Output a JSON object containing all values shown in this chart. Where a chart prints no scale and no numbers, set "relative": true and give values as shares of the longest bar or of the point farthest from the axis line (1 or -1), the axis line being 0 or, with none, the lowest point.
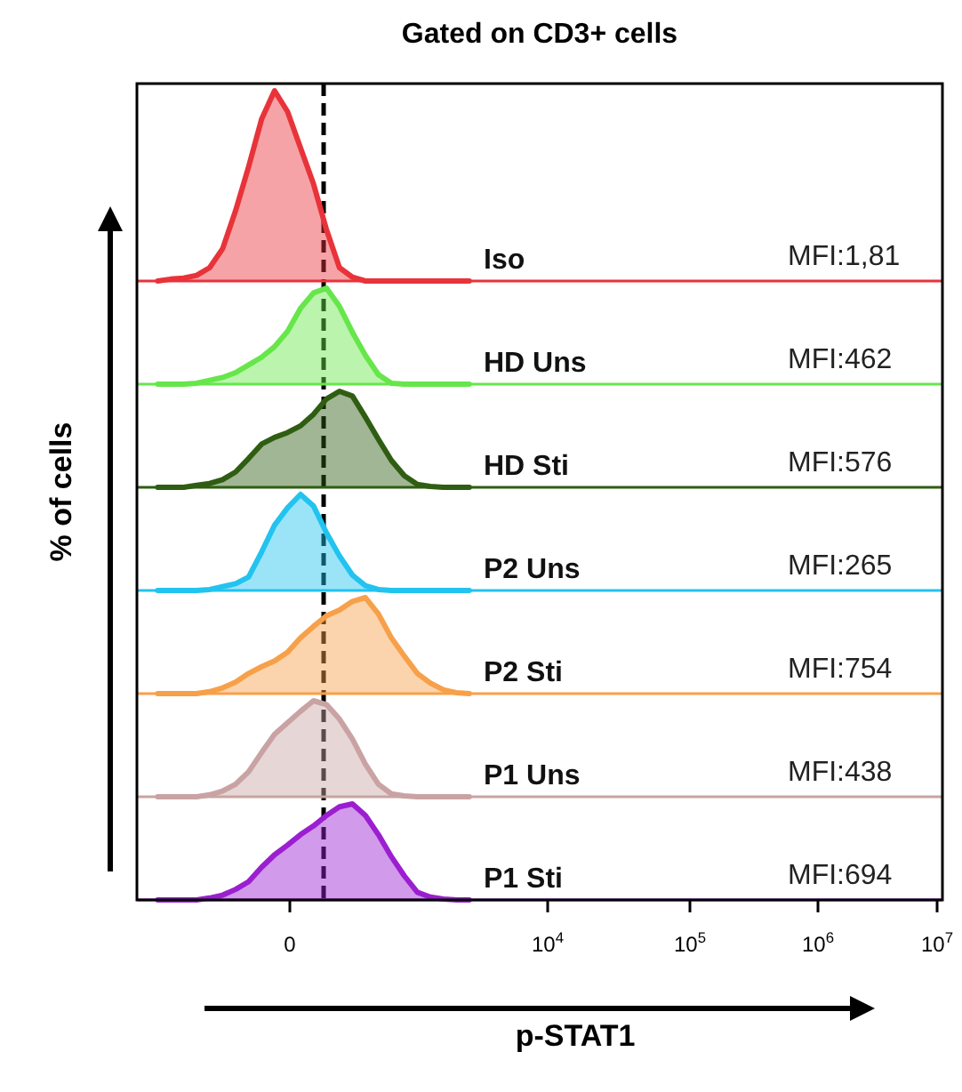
{
  "chart_data": [
    {
      "type": "area",
      "title": "Gated on CD3+ cells",
      "ylabel": "% of cells",
      "relative": true,
      "legend": false,
      "line_style": "solid",
      "annotations": [
        "MFI:1,81"
      ],
      "categories": [
        null,
        null,
        null,
        null,
        null,
        null,
        null,
        null,
        null,
        null,
        null,
        null,
        null,
        null,
        null,
        null,
        null,
        null,
        null,
        null,
        null,
        null,
        null,
        null,
        null
      ],
      "series": [
        {
          "name": "Iso",
          "color": "#e8333a",
          "values": [
            0,
            0.01,
            0.015,
            0.03,
            0.07,
            0.17,
            0.37,
            0.6,
            0.85,
            1,
            0.89,
            0.7,
            0.51,
            0.27,
            0.07,
            0.02,
            0,
            0,
            0,
            0,
            0,
            0,
            0,
            0,
            0
          ]
        }
      ]
    },
    {
      "type": "area",
      "relative": true,
      "legend": false,
      "line_style": "solid",
      "annotations": [
        "MFI:462"
      ],
      "categories": [
        null,
        null,
        null,
        null,
        null,
        null,
        null,
        null,
        null,
        null,
        null,
        null,
        null,
        null,
        null,
        null,
        null,
        null,
        null,
        null,
        null,
        null,
        null,
        null,
        null
      ],
      "series": [
        {
          "name": "HD Uns",
          "color": "#66e64a",
          "values": [
            0,
            0,
            0,
            0.01,
            0.04,
            0.07,
            0.12,
            0.2,
            0.28,
            0.39,
            0.55,
            0.79,
            0.95,
            1,
            0.81,
            0.54,
            0.3,
            0.1,
            0.01,
            0,
            0,
            0,
            0,
            0,
            0
          ]
        }
      ]
    },
    {
      "type": "area",
      "relative": true,
      "legend": false,
      "line_style": "solid",
      "annotations": [
        "MFI:576"
      ],
      "categories": [
        null,
        null,
        null,
        null,
        null,
        null,
        null,
        null,
        null,
        null,
        null,
        null,
        null,
        null,
        null,
        null,
        null,
        null,
        null,
        null,
        null,
        null,
        null,
        null,
        null
      ],
      "series": [
        {
          "name": "HD Sti",
          "color": "#2f5e12",
          "values": [
            0,
            0,
            0,
            0.02,
            0.04,
            0.08,
            0.16,
            0.3,
            0.45,
            0.52,
            0.57,
            0.64,
            0.76,
            0.92,
            1,
            0.95,
            0.73,
            0.5,
            0.28,
            0.12,
            0.03,
            0.01,
            0,
            0,
            0
          ]
        }
      ]
    },
    {
      "type": "area",
      "relative": true,
      "legend": false,
      "line_style": "solid",
      "annotations": [
        "MFI:265"
      ],
      "categories": [
        null,
        null,
        null,
        null,
        null,
        null,
        null,
        null,
        null,
        null,
        null,
        null,
        null,
        null,
        null,
        null,
        null,
        null,
        null,
        null,
        null,
        null,
        null,
        null,
        null
      ],
      "series": [
        {
          "name": "P2 Uns",
          "color": "#22c3ef",
          "values": [
            0,
            0,
            0,
            0,
            0.01,
            0.04,
            0.07,
            0.14,
            0.4,
            0.68,
            0.86,
            1,
            0.88,
            0.6,
            0.36,
            0.16,
            0.05,
            0.01,
            0,
            0,
            0,
            0,
            0,
            0,
            0
          ]
        }
      ]
    },
    {
      "type": "area",
      "relative": true,
      "legend": false,
      "line_style": "solid",
      "annotations": [
        "MFI:754"
      ],
      "categories": [
        null,
        null,
        null,
        null,
        null,
        null,
        null,
        null,
        null,
        null,
        null,
        null,
        null,
        null,
        null,
        null,
        null,
        null,
        null,
        null,
        null,
        null,
        null,
        null,
        null
      ],
      "series": [
        {
          "name": "P2 Sti",
          "color": "#f7a04a",
          "values": [
            0,
            0,
            0,
            0,
            0.02,
            0.06,
            0.12,
            0.21,
            0.28,
            0.34,
            0.43,
            0.58,
            0.7,
            0.81,
            0.87,
            0.96,
            1,
            0.83,
            0.58,
            0.39,
            0.21,
            0.11,
            0.04,
            0.01,
            0
          ]
        }
      ]
    },
    {
      "type": "area",
      "relative": true,
      "legend": false,
      "line_style": "solid",
      "annotations": [
        "MFI:438"
      ],
      "categories": [
        null,
        null,
        null,
        null,
        null,
        null,
        null,
        null,
        null,
        null,
        null,
        null,
        null,
        null,
        null,
        null,
        null,
        null,
        null,
        null,
        null,
        null,
        null,
        null,
        null
      ],
      "series": [
        {
          "name": "P1 Uns",
          "color": "#c9a3a3",
          "values": [
            0,
            0,
            0,
            0,
            0.02,
            0.06,
            0.13,
            0.26,
            0.46,
            0.65,
            0.77,
            0.89,
            1,
            0.96,
            0.81,
            0.6,
            0.34,
            0.13,
            0.03,
            0.01,
            0,
            0,
            0,
            0,
            0
          ]
        }
      ]
    },
    {
      "type": "area",
      "xlabel": "p-STAT1",
      "relative": true,
      "legend": false,
      "line_style": "solid",
      "annotations": [
        "MFI:694",
        "0",
        "10$^{4}$",
        "10$^{5}$",
        "10$^{6}$",
        "10$^{7}$"
      ],
      "categories": [
        null,
        null,
        null,
        null,
        null,
        null,
        null,
        null,
        null,
        null,
        null,
        null,
        null,
        null,
        null,
        null,
        null,
        null,
        null,
        null,
        null,
        null,
        null,
        null,
        null
      ],
      "series": [
        {
          "name": "P1 Sti",
          "color": "#9b1fd0",
          "values": [
            0,
            0,
            0,
            0,
            0.02,
            0.05,
            0.11,
            0.19,
            0.34,
            0.47,
            0.57,
            0.68,
            0.77,
            0.88,
            0.97,
            1,
            0.88,
            0.68,
            0.45,
            0.25,
            0.08,
            0.03,
            0.01,
            0,
            0
          ]
        }
      ]
    }
  ]
}
